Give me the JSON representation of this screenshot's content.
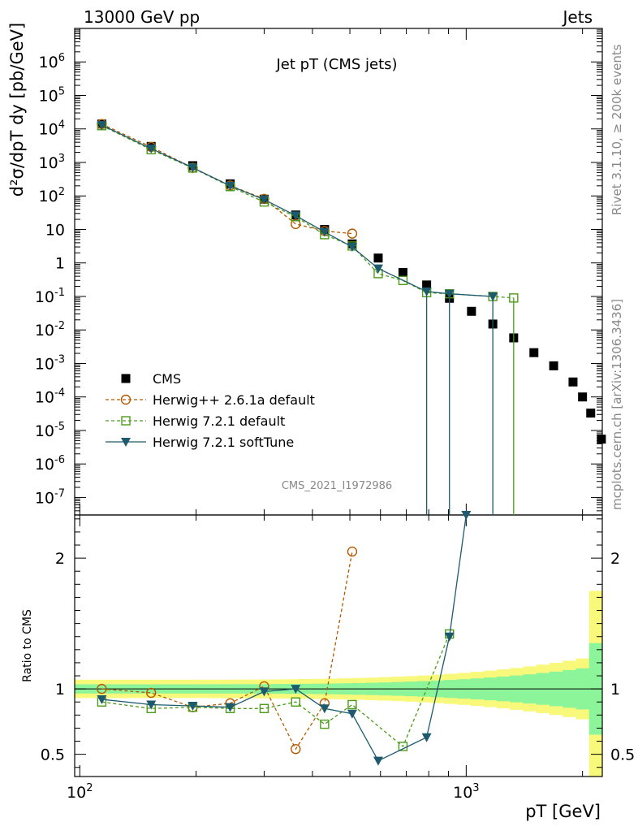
{
  "header": {
    "energy_label": "13000 GeV pp",
    "process_label": "Jets",
    "rivet_label": "Rivet 3.1.10, ≥ 200k events",
    "source_label": "mcplots.cern.ch [arXiv:1306.3436]",
    "analysis_label": "CMS_2021_I1972986"
  },
  "chart_data": [
    {
      "panel": "main",
      "type": "scatter",
      "title": "Jet p_T (CMS jets)",
      "ylabel": "d²σ/dp_T dy [pb/GeV]",
      "xlabel": "p_T [GeV]",
      "xscale": "log",
      "yscale": "log",
      "xlim": [
        97,
        2250
      ],
      "ylim": [
        3e-08,
        10000000
      ],
      "legend_position": "lower-left",
      "legend": [
        "CMS",
        "Herwig++ 2.6.1a default",
        "Herwig 7.2.1 default",
        "Herwig 7.2.1 softTune"
      ],
      "series": [
        {
          "name": "CMS",
          "color": "#000000",
          "marker": "square",
          "x": [
            114,
            153,
            196,
            245,
            300,
            362,
            430,
            507,
            592,
            686,
            790,
            905,
            1032,
            1172,
            1327,
            1497,
            1684,
            1890,
            2000,
            2100,
            2238
          ],
          "y": [
            14000,
            3000,
            800,
            230,
            80,
            27,
            10,
            3.7,
            1.4,
            0.52,
            0.22,
            0.088,
            0.036,
            0.015,
            0.0058,
            0.0021,
            0.00085,
            0.00028,
            0.0001,
            3.3e-05,
            5.5e-06
          ]
        },
        {
          "name": "Herwig++ 2.6.1a default",
          "color": "#b35a00",
          "marker": "open-circle",
          "x": [
            114,
            153,
            196,
            245,
            300,
            362,
            430,
            507
          ],
          "y": [
            14000,
            2900,
            690,
            205,
            82,
            14.5,
            9,
            7.5
          ]
        },
        {
          "name": "Herwig 7.2.1 default",
          "color": "#4d9a1a",
          "marker": "open-square",
          "x": [
            114,
            153,
            196,
            245,
            300,
            362,
            430,
            507,
            592,
            686,
            790,
            905,
            1172,
            1327
          ],
          "y": [
            12500,
            2400,
            680,
            190,
            66,
            24,
            7,
            3.2,
            0.48,
            0.3,
            0.13,
            0.12,
            0.1,
            0.09
          ]
        },
        {
          "name": "Herwig 7.2.1 softTune",
          "color": "#1e5a6e",
          "marker": "filled-triangle-down",
          "x": [
            114,
            153,
            196,
            245,
            300,
            362,
            430,
            507,
            592,
            790,
            905,
            1172
          ],
          "y": [
            13000,
            2600,
            700,
            200,
            78,
            26,
            8.4,
            3.0,
            0.68,
            0.14,
            0.12,
            0.1
          ]
        }
      ]
    },
    {
      "panel": "ratio",
      "type": "line",
      "ylabel": "Ratio to CMS",
      "xscale": "log",
      "xlim": [
        97,
        2250
      ],
      "ylim": [
        0.33,
        2.33
      ],
      "reference_line": 1,
      "uncertainty_band_colors": [
        "#f8f87a",
        "#8cf59a"
      ],
      "series": [
        {
          "name": "Herwig++ 2.6.1a default",
          "color": "#b35a00",
          "x": [
            114,
            153,
            196,
            245,
            300,
            362,
            430,
            507
          ],
          "y": [
            1.0,
            0.97,
            0.86,
            0.89,
            1.02,
            0.54,
            0.89,
            2.05
          ]
        },
        {
          "name": "Herwig 7.2.1 default",
          "color": "#4d9a1a",
          "x": [
            114,
            153,
            196,
            245,
            300,
            362,
            430,
            507,
            686,
            905
          ],
          "y": [
            0.9,
            0.85,
            0.86,
            0.85,
            0.85,
            0.9,
            0.73,
            0.88,
            0.56,
            1.42
          ]
        },
        {
          "name": "Herwig 7.2.1 softTune",
          "color": "#1e5a6e",
          "x": [
            114,
            153,
            196,
            245,
            300,
            362,
            430,
            507,
            592,
            790,
            905,
            1000
          ],
          "y": [
            0.92,
            0.88,
            0.87,
            0.86,
            0.98,
            1.0,
            0.85,
            0.81,
            0.45,
            0.63,
            1.4,
            2.33
          ]
        }
      ]
    }
  ]
}
